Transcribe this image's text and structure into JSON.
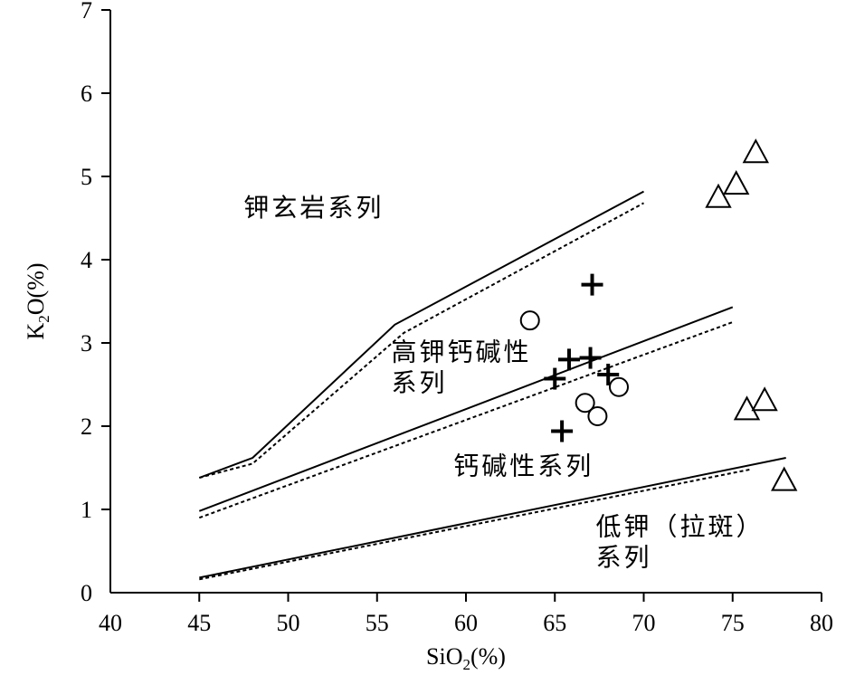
{
  "chart_data": {
    "type": "scatter",
    "xlabel_main": "SiO",
    "xlabel_sub": "2",
    "xlabel_tail": "(%)",
    "ylabel_main": "K",
    "ylabel_sub": "2",
    "ylabel_tail": "O(%)",
    "xlim": [
      40,
      80
    ],
    "ylim": [
      0,
      7
    ],
    "xticks": [
      40,
      45,
      50,
      55,
      60,
      65,
      70,
      75,
      80
    ],
    "yticks": [
      0,
      1,
      2,
      3,
      4,
      5,
      6,
      7
    ],
    "boundaries": [
      {
        "style": "solid",
        "points": [
          [
            45,
            1.38
          ],
          [
            48,
            1.62
          ],
          [
            56,
            3.22
          ],
          [
            70,
            4.82
          ]
        ]
      },
      {
        "style": "dotted",
        "points": [
          [
            45,
            1.38
          ],
          [
            48,
            1.55
          ],
          [
            56.5,
            3.12
          ],
          [
            70,
            4.68
          ]
        ]
      },
      {
        "style": "solid",
        "points": [
          [
            45,
            0.98
          ],
          [
            75,
            3.43
          ]
        ]
      },
      {
        "style": "dotted",
        "points": [
          [
            45,
            0.9
          ],
          [
            75,
            3.25
          ]
        ]
      },
      {
        "style": "solid",
        "points": [
          [
            45,
            0.18
          ],
          [
            78,
            1.62
          ]
        ]
      },
      {
        "style": "dotted",
        "points": [
          [
            45,
            0.16
          ],
          [
            76,
            1.48
          ]
        ]
      }
    ],
    "region_labels": [
      {
        "lines": [
          "钾玄岩系列"
        ],
        "x": 47.5,
        "y": 4.52
      },
      {
        "lines": [
          "高钾钙碱性",
          "系列"
        ],
        "x": 55.8,
        "y": 2.79
      },
      {
        "lines": [
          "钙碱性系列"
        ],
        "x": 59.3,
        "y": 1.42
      },
      {
        "lines": [
          "低钾（拉斑）",
          "系列"
        ],
        "x": 67.3,
        "y": 0.69
      }
    ],
    "series": [
      {
        "marker": "circle",
        "points": [
          [
            63.6,
            3.27
          ],
          [
            66.7,
            2.28
          ],
          [
            67.4,
            2.12
          ],
          [
            68.6,
            2.47
          ]
        ]
      },
      {
        "marker": "plus",
        "points": [
          [
            67.1,
            3.7
          ],
          [
            65.8,
            2.8
          ],
          [
            67.0,
            2.82
          ],
          [
            65.0,
            2.57
          ],
          [
            68.0,
            2.62
          ],
          [
            65.4,
            1.94
          ]
        ]
      },
      {
        "marker": "triangle",
        "points": [
          [
            76.3,
            5.27
          ],
          [
            75.2,
            4.89
          ],
          [
            74.2,
            4.73
          ],
          [
            75.8,
            2.18
          ],
          [
            76.8,
            2.29
          ],
          [
            77.9,
            1.33
          ]
        ]
      }
    ]
  }
}
